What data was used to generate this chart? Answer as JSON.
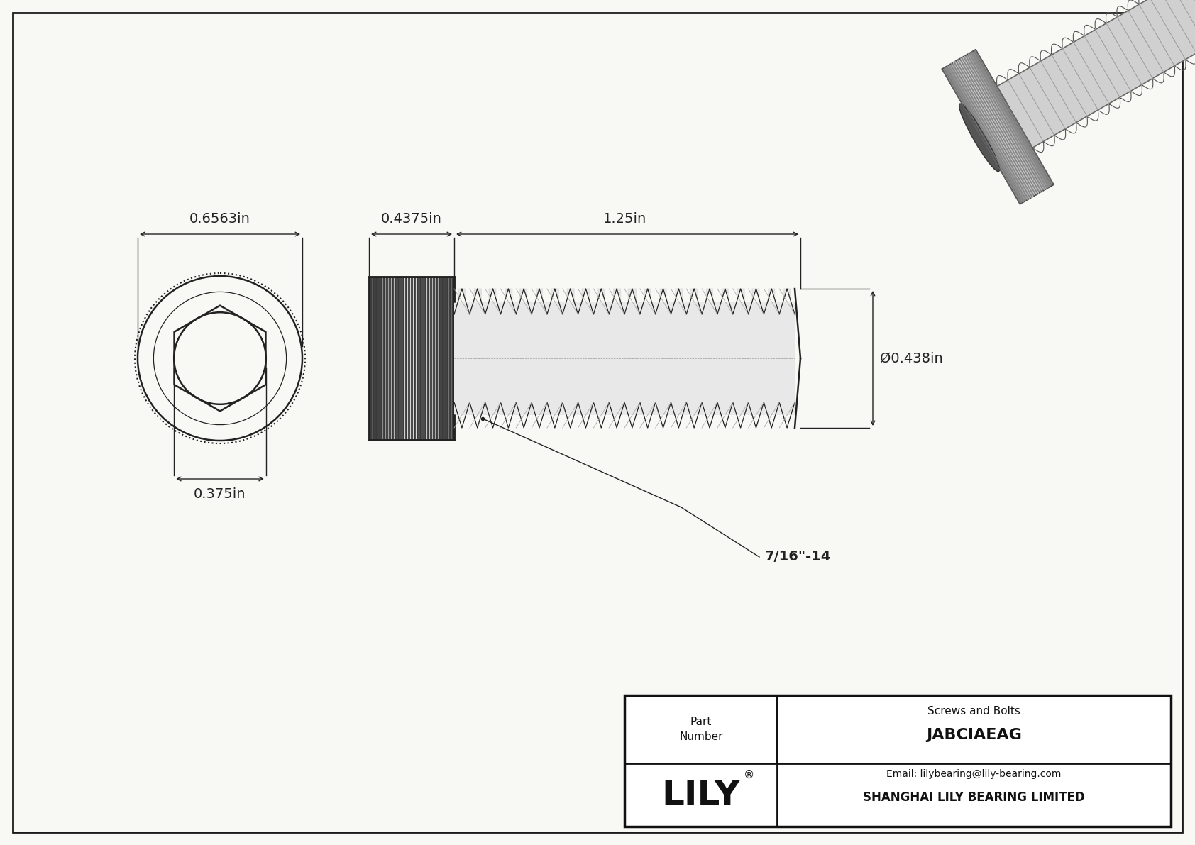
{
  "bg_color": "#f8f8f5",
  "border_color": "#1a1a1a",
  "drawing_color": "#222222",
  "dim_color": "#222222",
  "title": "JABCIAEAG",
  "subtitle": "Screws and Bolts",
  "company": "SHANGHAI LILY BEARING LIMITED",
  "email": "Email: lilybearing@lily-bearing.com",
  "part_label": "Part\nNumber",
  "logo_text": "LILY",
  "dim_outer_diam": "0.6563in",
  "dim_inner_diam": "0.375in",
  "dim_head_len": "0.4375in",
  "dim_thread_len": "1.25in",
  "dim_thread_diam": "Ø0.438in",
  "dim_thread_pitch": "7/16\"-14",
  "figw": 16.84,
  "figh": 11.91
}
